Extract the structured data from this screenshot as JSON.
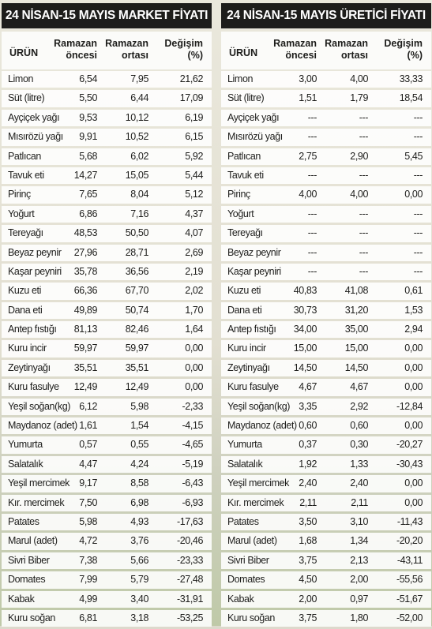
{
  "market": {
    "title": "24 NİSAN-15 MAYIS MARKET FİYATI",
    "headers": {
      "product": "ÜRÜN",
      "col1": "Ramazan öncesi",
      "col2": "Ramazan ortası",
      "col3": "Değişim (%)"
    },
    "rows": [
      [
        "Limon",
        "6,54",
        "7,95",
        "21,62"
      ],
      [
        "Süt (litre)",
        "5,50",
        "6,44",
        "17,09"
      ],
      [
        "Ayçiçek yağı",
        "9,53",
        "10,12",
        "6,19"
      ],
      [
        "Mısırözü yağı",
        "9,91",
        "10,52",
        "6,15"
      ],
      [
        "Patlıcan",
        "5,68",
        "6,02",
        "5,92"
      ],
      [
        "Tavuk eti",
        "14,27",
        "15,05",
        "5,44"
      ],
      [
        "Pirinç",
        "7,65",
        "8,04",
        "5,12"
      ],
      [
        "Yoğurt",
        "6,86",
        "7,16",
        "4,37"
      ],
      [
        "Tereyağı",
        "48,53",
        "50,50",
        "4,07"
      ],
      [
        "Beyaz peynir",
        "27,96",
        "28,71",
        "2,69"
      ],
      [
        "Kaşar peyniri",
        "35,78",
        "36,56",
        "2,19"
      ],
      [
        "Kuzu eti",
        "66,36",
        "67,70",
        "2,02"
      ],
      [
        "Dana eti",
        "49,89",
        "50,74",
        "1,70"
      ],
      [
        "Antep fıstığı",
        "81,13",
        "82,46",
        "1,64"
      ],
      [
        "Kuru incir",
        "59,97",
        "59,97",
        "0,00"
      ],
      [
        "Zeytinyağı",
        "35,51",
        "35,51",
        "0,00"
      ],
      [
        "Kuru fasulye",
        "12,49",
        "12,49",
        "0,00"
      ],
      [
        "Yeşil soğan(kg)",
        "6,12",
        "5,98",
        "-2,33"
      ],
      [
        "Maydanoz (adet)",
        "1,61",
        "1,54",
        "-4,15"
      ],
      [
        "Yumurta",
        "0,57",
        "0,55",
        "-4,65"
      ],
      [
        "Salatalık",
        "4,47",
        "4,24",
        "-5,19"
      ],
      [
        "Yeşil mercimek",
        "9,17",
        "8,58",
        "-6,43"
      ],
      [
        "Kır. mercimek",
        "7,50",
        "6,98",
        "-6,93"
      ],
      [
        "Patates",
        "5,98",
        "4,93",
        "-17,63"
      ],
      [
        "Marul (adet)",
        "4,72",
        "3,76",
        "-20,46"
      ],
      [
        "Sivri Biber",
        "7,38",
        "5,66",
        "-23,33"
      ],
      [
        "Domates",
        "7,99",
        "5,79",
        "-27,48"
      ],
      [
        "Kabak",
        "4,99",
        "3,40",
        "-31,91"
      ],
      [
        "Kuru soğan",
        "6,81",
        "3,18",
        "-53,25"
      ]
    ]
  },
  "producer": {
    "title": "24 NİSAN-15 MAYIS ÜRETİCİ FİYATI",
    "headers": {
      "product": "ÜRÜN",
      "col1": "Ramazan öncesi",
      "col2": "Ramazan ortası",
      "col3": "Değişim (%)"
    },
    "rows": [
      [
        "Limon",
        "3,00",
        "4,00",
        "33,33"
      ],
      [
        "Süt (litre)",
        "1,51",
        "1,79",
        "18,54"
      ],
      [
        "Ayçiçek yağı",
        "---",
        "---",
        "---"
      ],
      [
        "Mısırözü yağı",
        "---",
        "---",
        "---"
      ],
      [
        "Patlıcan",
        "2,75",
        "2,90",
        "5,45"
      ],
      [
        "Tavuk eti",
        "---",
        "---",
        "---"
      ],
      [
        "Pirinç",
        "4,00",
        "4,00",
        "0,00"
      ],
      [
        "Yoğurt",
        "---",
        "---",
        "---"
      ],
      [
        "Tereyağı",
        "---",
        "---",
        "---"
      ],
      [
        "Beyaz peynir",
        "---",
        "---",
        "---"
      ],
      [
        "Kaşar peyniri",
        "---",
        "---",
        "---"
      ],
      [
        "Kuzu eti",
        "40,83",
        "41,08",
        "0,61"
      ],
      [
        "Dana eti",
        "30,73",
        "31,20",
        "1,53"
      ],
      [
        "Antep fıstığı",
        "34,00",
        "35,00",
        "2,94"
      ],
      [
        "Kuru incir",
        "15,00",
        "15,00",
        "0,00"
      ],
      [
        "Zeytinyağı",
        "14,50",
        "14,50",
        "0,00"
      ],
      [
        "Kuru fasulye",
        "4,67",
        "4,67",
        "0,00"
      ],
      [
        "Yeşil soğan(kg)",
        "3,35",
        "2,92",
        "-12,84"
      ],
      [
        "Maydanoz (adet)",
        "0,60",
        "0,60",
        "0,00"
      ],
      [
        "Yumurta",
        "0,37",
        "0,30",
        "-20,27"
      ],
      [
        "Salatalık",
        "1,92",
        "1,33",
        "-30,43"
      ],
      [
        "Yeşil mercimek",
        "2,40",
        "2,40",
        "0,00"
      ],
      [
        "Kır. mercimek",
        "2,11",
        "2,11",
        "0,00"
      ],
      [
        "Patates",
        "3,50",
        "3,10",
        "-11,43"
      ],
      [
        "Marul (adet)",
        "1,68",
        "1,34",
        "-20,20"
      ],
      [
        "Sivri Biber",
        "3,75",
        "2,13",
        "-43,11"
      ],
      [
        "Domates",
        "4,50",
        "2,00",
        "-55,56"
      ],
      [
        "Kabak",
        "2,00",
        "0,97",
        "-51,67"
      ],
      [
        "Kuru soğan",
        "3,75",
        "1,80",
        "-52,00"
      ]
    ]
  },
  "colors": {
    "title_bg": "#1d1d1b",
    "title_fg": "#ffffff",
    "row_bg": "#ffffff",
    "text": "#1d1d1b"
  }
}
